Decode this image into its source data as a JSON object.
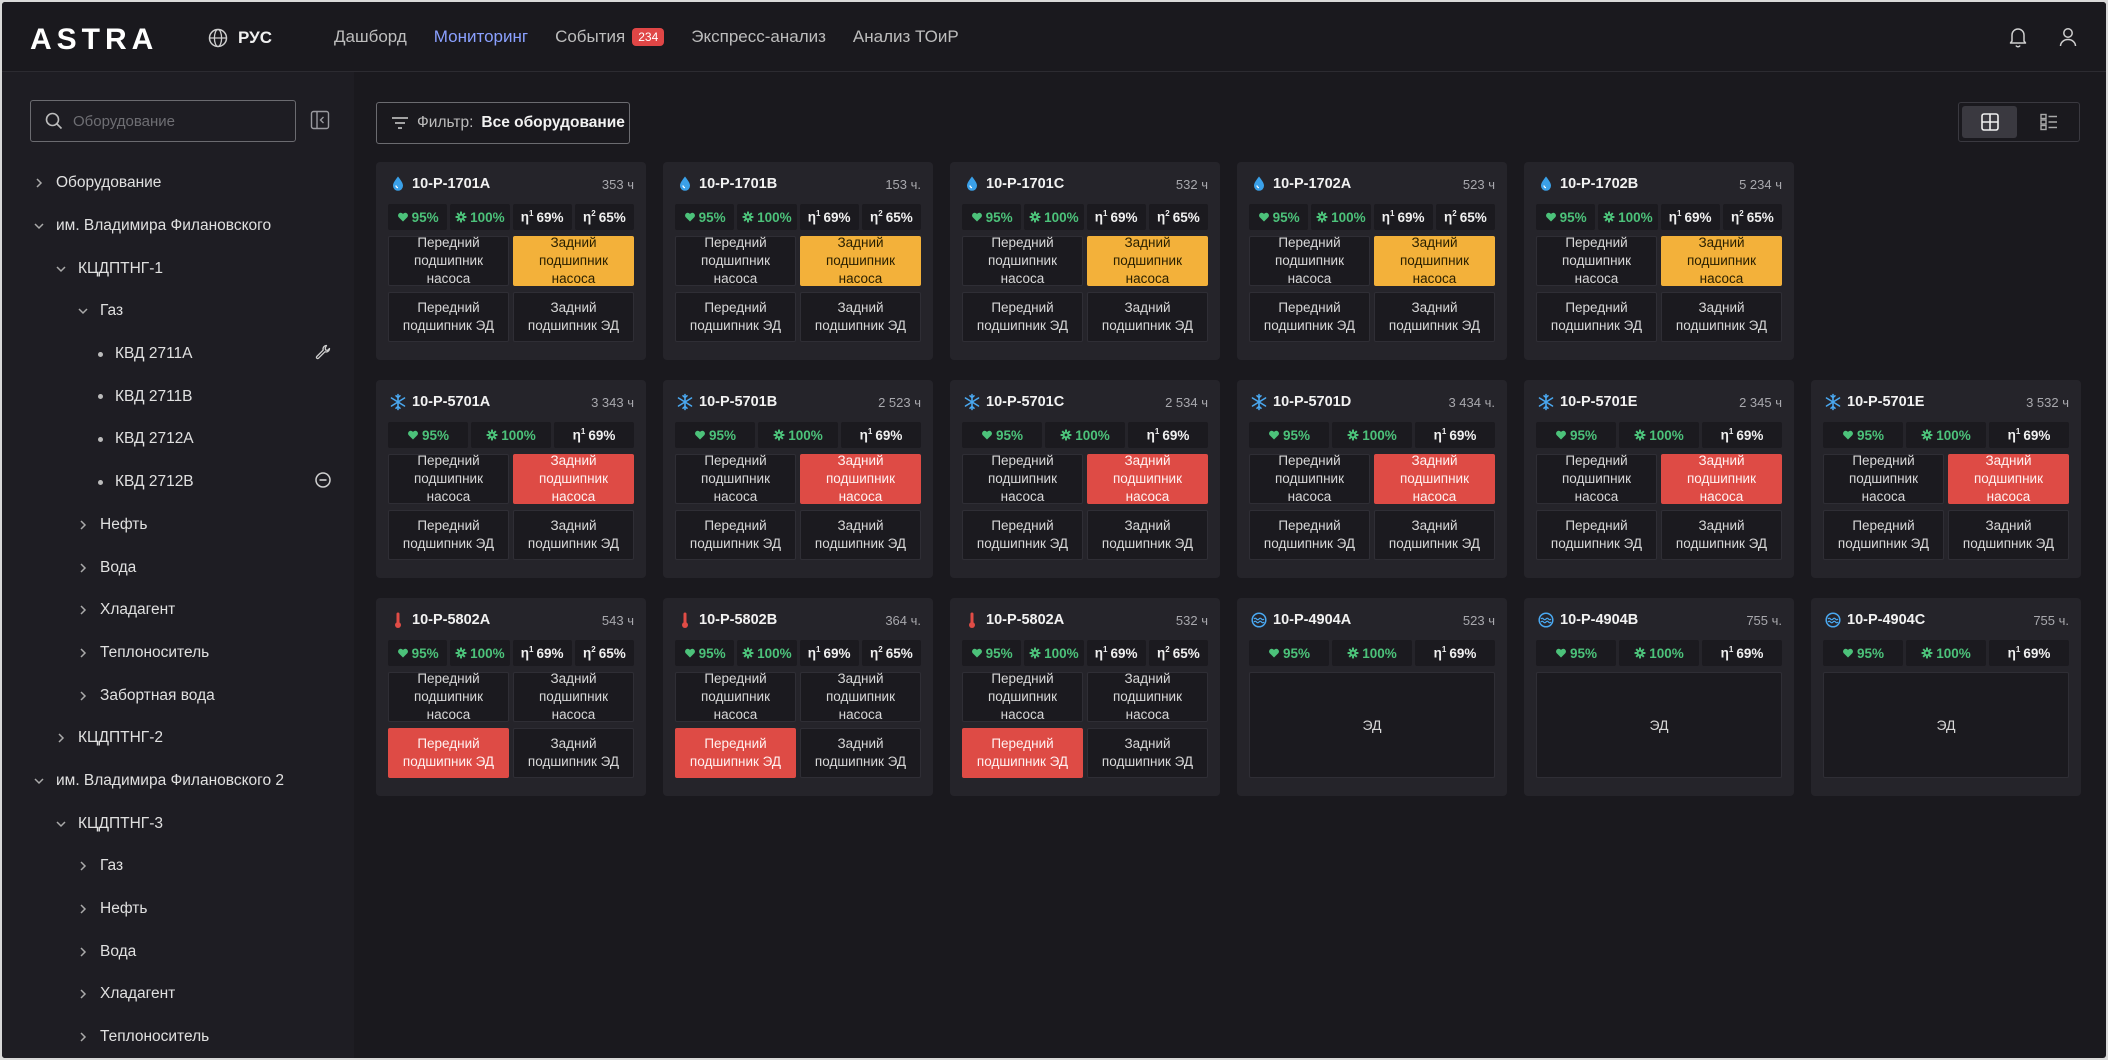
{
  "header": {
    "logo": "ASTRA",
    "lang": "РУС",
    "nav": [
      {
        "label": "Дашборд"
      },
      {
        "label": "Мониторинг",
        "active": true
      },
      {
        "label": "События",
        "badge": "234"
      },
      {
        "label": "Экспресс-анализ"
      },
      {
        "label": "Анализ ТОиР"
      }
    ]
  },
  "sidebar": {
    "search_placeholder": "Оборудование",
    "tree": [
      {
        "label": "Оборудование",
        "level": 0,
        "state": "collapsed"
      },
      {
        "label": "им. Владимира Филановского",
        "level": 0,
        "state": "expanded"
      },
      {
        "label": "КЦДПТНГ-1",
        "level": 1,
        "state": "expanded"
      },
      {
        "label": "Газ",
        "level": 2,
        "state": "expanded"
      },
      {
        "label": "КВД 2711А",
        "level": 3,
        "state": "leaf",
        "icon": "wrench-icon"
      },
      {
        "label": "КВД 2711B",
        "level": 3,
        "state": "leaf"
      },
      {
        "label": "КВД 2712А",
        "level": 3,
        "state": "leaf"
      },
      {
        "label": "КВД 2712B",
        "level": 3,
        "state": "leaf",
        "icon": "minus-circle-icon"
      },
      {
        "label": "Нефть",
        "level": 2,
        "state": "collapsed"
      },
      {
        "label": "Вода",
        "level": 2,
        "state": "collapsed"
      },
      {
        "label": "Хладагент",
        "level": 2,
        "state": "collapsed"
      },
      {
        "label": "Теплоноситель",
        "level": 2,
        "state": "collapsed"
      },
      {
        "label": "Забортная вода",
        "level": 2,
        "state": "collapsed"
      },
      {
        "label": "КЦДПТНГ-2",
        "level": 1,
        "state": "collapsed"
      },
      {
        "label": "им. Владимира Филановского 2",
        "level": 0,
        "state": "expanded"
      },
      {
        "label": "КЦДПТНГ-3",
        "level": 1,
        "state": "expanded"
      },
      {
        "label": "Газ",
        "level": 2,
        "state": "collapsed"
      },
      {
        "label": "Нефть",
        "level": 2,
        "state": "collapsed"
      },
      {
        "label": "Вода",
        "level": 2,
        "state": "collapsed"
      },
      {
        "label": "Хладагент",
        "level": 2,
        "state": "collapsed"
      },
      {
        "label": "Теплоноситель",
        "level": 2,
        "state": "collapsed"
      }
    ]
  },
  "filter": {
    "label": "Фильтр:",
    "value": "Все оборудование"
  },
  "colors": {
    "accent": "#8aa0ff",
    "ok": "#4cc27a",
    "warn": "#f3b13a",
    "crit": "#de4b45",
    "water": "#3aa0e8"
  },
  "cards": [
    {
      "name": "10-P-1701A",
      "hours": "353 ч",
      "icon": "drop-icon",
      "metrics": [
        [
          "heart-icon",
          "95%",
          "g"
        ],
        [
          "gear-icon",
          "100%",
          "g"
        ],
        [
          "η1",
          "69%",
          "w"
        ],
        [
          "η2",
          "65%",
          "w"
        ]
      ],
      "cells": [
        [
          "Передний подшипник насоса",
          ""
        ],
        [
          "Задний подшипник насоса",
          "warn"
        ],
        [
          "Передний подшипник ЭД",
          ""
        ],
        [
          "Задний подшипник ЭД",
          ""
        ]
      ]
    },
    {
      "name": "10-P-1701B",
      "hours": "153 ч.",
      "icon": "drop-icon",
      "metrics": [
        [
          "heart-icon",
          "95%",
          "g"
        ],
        [
          "gear-icon",
          "100%",
          "g"
        ],
        [
          "η1",
          "69%",
          "w"
        ],
        [
          "η2",
          "65%",
          "w"
        ]
      ],
      "cells": [
        [
          "Передний подшипник насоса",
          ""
        ],
        [
          "Задний подшипник насоса",
          "warn"
        ],
        [
          "Передний подшипник ЭД",
          ""
        ],
        [
          "Задний подшипник ЭД",
          ""
        ]
      ]
    },
    {
      "name": "10-P-1701C",
      "hours": "532 ч",
      "icon": "drop-icon",
      "metrics": [
        [
          "heart-icon",
          "95%",
          "g"
        ],
        [
          "gear-icon",
          "100%",
          "g"
        ],
        [
          "η1",
          "69%",
          "w"
        ],
        [
          "η2",
          "65%",
          "w"
        ]
      ],
      "cells": [
        [
          "Передний подшипник насоса",
          ""
        ],
        [
          "Задний подшипник насоса",
          "warn"
        ],
        [
          "Передний подшипник ЭД",
          ""
        ],
        [
          "Задний подшипник ЭД",
          ""
        ]
      ]
    },
    {
      "name": "10-P-1702A",
      "hours": "523 ч",
      "icon": "drop-icon",
      "metrics": [
        [
          "heart-icon",
          "95%",
          "g"
        ],
        [
          "gear-icon",
          "100%",
          "g"
        ],
        [
          "η1",
          "69%",
          "w"
        ],
        [
          "η2",
          "65%",
          "w"
        ]
      ],
      "cells": [
        [
          "Передний подшипник насоса",
          ""
        ],
        [
          "Задний подшипник насоса",
          "warn"
        ],
        [
          "Передний подшипник ЭД",
          ""
        ],
        [
          "Задний подшипник ЭД",
          ""
        ]
      ]
    },
    {
      "name": "10-P-1702B",
      "hours": "5 234 ч",
      "icon": "drop-icon",
      "metrics": [
        [
          "heart-icon",
          "95%",
          "g"
        ],
        [
          "gear-icon",
          "100%",
          "g"
        ],
        [
          "η1",
          "69%",
          "w"
        ],
        [
          "η2",
          "65%",
          "w"
        ]
      ],
      "cells": [
        [
          "Передний подшипник насоса",
          ""
        ],
        [
          "Задний подшипник насоса",
          "warn"
        ],
        [
          "Передний подшипник ЭД",
          ""
        ],
        [
          "Задний подшипник ЭД",
          ""
        ]
      ]
    },
    {
      "name": "10-P-5701A",
      "hours": "3 343 ч",
      "icon": "snowflake-icon",
      "metrics": [
        [
          "heart-icon",
          "95%",
          "g"
        ],
        [
          "gear-icon",
          "100%",
          "g"
        ],
        [
          "η1",
          "69%",
          "w"
        ]
      ],
      "cells": [
        [
          "Передний подшипник насоса",
          ""
        ],
        [
          "Задний подшипник насоса",
          "crit"
        ],
        [
          "Передний подшипник ЭД",
          ""
        ],
        [
          "Задний подшипник ЭД",
          ""
        ]
      ]
    },
    {
      "name": "10-P-5701B",
      "hours": "2 523 ч",
      "icon": "snowflake-icon",
      "metrics": [
        [
          "heart-icon",
          "95%",
          "g"
        ],
        [
          "gear-icon",
          "100%",
          "g"
        ],
        [
          "η1",
          "69%",
          "w"
        ]
      ],
      "cells": [
        [
          "Передний подшипник насоса",
          ""
        ],
        [
          "Задний подшипник насоса",
          "crit"
        ],
        [
          "Передний подшипник ЭД",
          ""
        ],
        [
          "Задний подшипник ЭД",
          ""
        ]
      ]
    },
    {
      "name": "10-P-5701C",
      "hours": "2 534 ч",
      "icon": "snowflake-icon",
      "metrics": [
        [
          "heart-icon",
          "95%",
          "g"
        ],
        [
          "gear-icon",
          "100%",
          "g"
        ],
        [
          "η1",
          "69%",
          "w"
        ]
      ],
      "cells": [
        [
          "Передний подшипник насоса",
          ""
        ],
        [
          "Задний подшипник насоса",
          "crit"
        ],
        [
          "Передний подшипник ЭД",
          ""
        ],
        [
          "Задний подшипник ЭД",
          ""
        ]
      ]
    },
    {
      "name": "10-P-5701D",
      "hours": "3 434 ч.",
      "icon": "snowflake-icon",
      "metrics": [
        [
          "heart-icon",
          "95%",
          "g"
        ],
        [
          "gear-icon",
          "100%",
          "g"
        ],
        [
          "η1",
          "69%",
          "w"
        ]
      ],
      "cells": [
        [
          "Передний подшипник насоса",
          ""
        ],
        [
          "Задний подшипник насоса",
          "crit"
        ],
        [
          "Передний подшипник ЭД",
          ""
        ],
        [
          "Задний подшипник ЭД",
          ""
        ]
      ]
    },
    {
      "name": "10-P-5701E",
      "hours": "2 345 ч",
      "icon": "snowflake-icon",
      "metrics": [
        [
          "heart-icon",
          "95%",
          "g"
        ],
        [
          "gear-icon",
          "100%",
          "g"
        ],
        [
          "η1",
          "69%",
          "w"
        ]
      ],
      "cells": [
        [
          "Передний подшипник насоса",
          ""
        ],
        [
          "Задний подшипник насоса",
          "crit"
        ],
        [
          "Передний подшипник ЭД",
          ""
        ],
        [
          "Задний подшипник ЭД",
          ""
        ]
      ]
    },
    {
      "name": "10-P-5701E",
      "hours": "3 532 ч",
      "icon": "snowflake-icon",
      "metrics": [
        [
          "heart-icon",
          "95%",
          "g"
        ],
        [
          "gear-icon",
          "100%",
          "g"
        ],
        [
          "η1",
          "69%",
          "w"
        ]
      ],
      "cells": [
        [
          "Передний подшипник насоса",
          ""
        ],
        [
          "Задний подшипник насоса",
          "crit"
        ],
        [
          "Передний подшипник ЭД",
          ""
        ],
        [
          "Задний подшипник ЭД",
          ""
        ]
      ]
    },
    {
      "name": "10-P-5802A",
      "hours": "543 ч",
      "icon": "thermometer-icon",
      "metrics": [
        [
          "heart-icon",
          "95%",
          "g"
        ],
        [
          "gear-icon",
          "100%",
          "g"
        ],
        [
          "η1",
          "69%",
          "w"
        ],
        [
          "η2",
          "65%",
          "w"
        ]
      ],
      "cells": [
        [
          "Передний подшипник насоса",
          ""
        ],
        [
          "Задний подшипник насоса",
          ""
        ],
        [
          "Передний подшипник ЭД",
          "crit"
        ],
        [
          "Задний подшипник ЭД",
          ""
        ]
      ]
    },
    {
      "name": "10-P-5802B",
      "hours": "364 ч.",
      "icon": "thermometer-icon",
      "metrics": [
        [
          "heart-icon",
          "95%",
          "g"
        ],
        [
          "gear-icon",
          "100%",
          "g"
        ],
        [
          "η1",
          "69%",
          "w"
        ],
        [
          "η2",
          "65%",
          "w"
        ]
      ],
      "cells": [
        [
          "Передний подшипник насоса",
          ""
        ],
        [
          "Задний подшипник насоса",
          ""
        ],
        [
          "Передний подшипник ЭД",
          "crit"
        ],
        [
          "Задний подшипник ЭД",
          ""
        ]
      ]
    },
    {
      "name": "10-P-5802A",
      "hours": "532 ч",
      "icon": "thermometer-icon",
      "metrics": [
        [
          "heart-icon",
          "95%",
          "g"
        ],
        [
          "gear-icon",
          "100%",
          "g"
        ],
        [
          "η1",
          "69%",
          "w"
        ],
        [
          "η2",
          "65%",
          "w"
        ]
      ],
      "cells": [
        [
          "Передний подшипник насоса",
          ""
        ],
        [
          "Задний подшипник насоса",
          ""
        ],
        [
          "Передний подшипник ЭД",
          "crit"
        ],
        [
          "Задний подшипник ЭД",
          ""
        ]
      ]
    },
    {
      "name": "10-P-4904A",
      "hours": "523 ч",
      "icon": "wave-icon",
      "metrics": [
        [
          "heart-icon",
          "95%",
          "g"
        ],
        [
          "gear-icon",
          "100%",
          "g"
        ],
        [
          "η1",
          "69%",
          "w"
        ]
      ],
      "cells": [
        [
          "ЭД",
          "big"
        ]
      ]
    },
    {
      "name": "10-P-4904B",
      "hours": "755 ч.",
      "icon": "wave-icon",
      "metrics": [
        [
          "heart-icon",
          "95%",
          "g"
        ],
        [
          "gear-icon",
          "100%",
          "g"
        ],
        [
          "η1",
          "69%",
          "w"
        ]
      ],
      "cells": [
        [
          "ЭД",
          "big"
        ]
      ]
    },
    {
      "name": "10-P-4904C",
      "hours": "755 ч.",
      "icon": "wave-icon",
      "metrics": [
        [
          "heart-icon",
          "95%",
          "g"
        ],
        [
          "gear-icon",
          "100%",
          "g"
        ],
        [
          "η1",
          "69%",
          "w"
        ]
      ],
      "cells": [
        [
          "ЭД",
          "big"
        ]
      ]
    }
  ]
}
